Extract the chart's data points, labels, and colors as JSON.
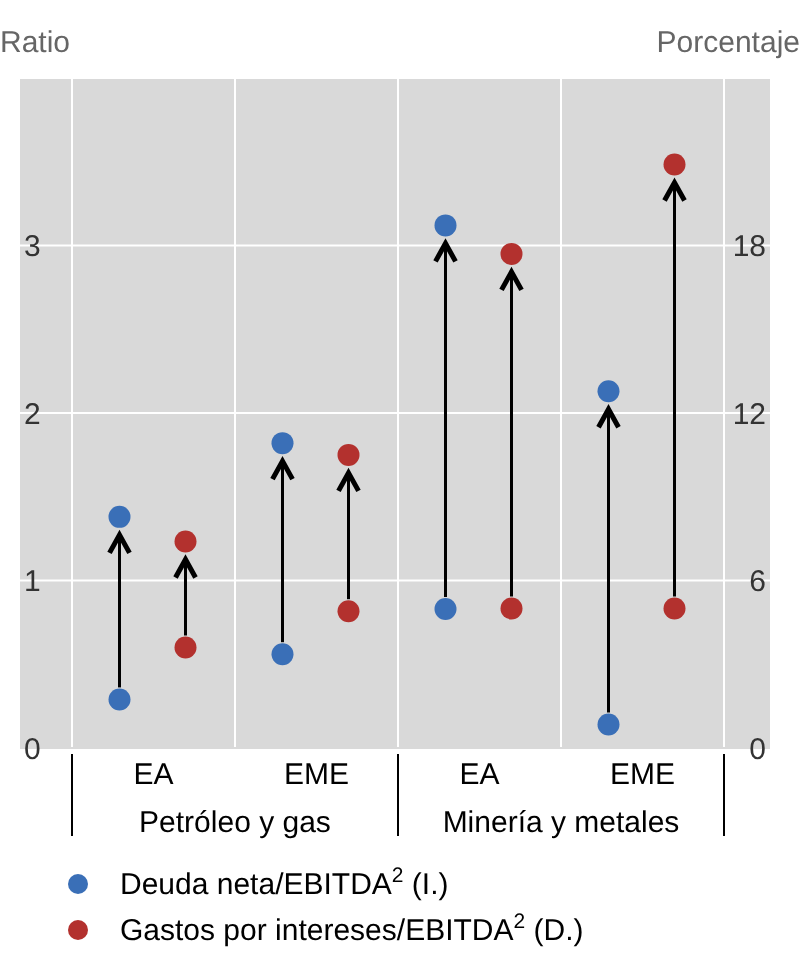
{
  "chart_data": {
    "type": "scatter",
    "ylabel": "Ratio",
    "y2label": "Porcentaje",
    "categories": [
      "EA",
      "EME",
      "EA",
      "EME"
    ],
    "annotations": [
      "Petróleo y gas",
      "Minería y metales"
    ],
    "series": [
      {
        "color": "#3a6fb7",
        "values": [
          0.29,
          0.56,
          0.83,
          0.14
        ]
      },
      {
        "name": "Deuda neta/EBITDA$^{2}$ (I.)",
        "color": "#3a6fb7",
        "values": [
          1.38,
          1.82,
          3.12,
          2.13
        ]
      },
      {
        "axis": "y2",
        "color": "#b3312e",
        "values": [
          3.6,
          4.9,
          5.0,
          5.0
        ]
      },
      {
        "axis": "y2",
        "name": "Gastos por intereses/EBITDA$^{2}$ (D.)",
        "color": "#b3312e",
        "values": [
          7.4,
          10.5,
          17.7,
          20.9
        ]
      }
    ],
    "ylim": [
      0,
      4
    ],
    "yticks": [
      0,
      1,
      2,
      3
    ],
    "y2lim": [
      0,
      24
    ],
    "y2ticks": [
      0,
      6,
      12,
      18
    ],
    "grid": true,
    "legend": "bottom",
    "marker": "circle"
  }
}
